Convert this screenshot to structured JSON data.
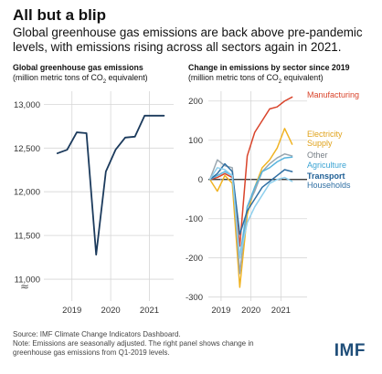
{
  "header": {
    "title": "All but a blip",
    "subtitle": "Global greenhouse gas emissions are back above pre-pandemic levels, with emissions rising across all sectors again in 2021."
  },
  "left_panel": {
    "title": "Global greenhouse gas  emissions",
    "unit_before": "(million metric tons of CO",
    "unit_sub": "2",
    "unit_after": " equivalent)"
  },
  "right_panel": {
    "title": "Change in emissions by sector since 2019",
    "unit_before": "(million metric tons of CO",
    "unit_sub": "2",
    "unit_after": " equivalent)"
  },
  "footer": {
    "source": "Source: IMF Climate Change Indicators Dashboard.",
    "note_line1": "Note: Emissions are seasonally adjusted. The right panel shows change in",
    "note_line2": "greenhouse gas emissions from Q1-2019 levels.",
    "logo": "IMF"
  },
  "chart_data": [
    {
      "type": "line",
      "title": "Global greenhouse gas  emissions",
      "ylabel": "(million metric tons of CO2 equivalent)",
      "ylim": [
        10750,
        13150
      ],
      "yticks": [
        11000,
        11500,
        12000,
        12500,
        13000
      ],
      "ytick_labels": [
        "11,000",
        "11,500",
        "12,000",
        "12,500",
        "13,000"
      ],
      "axis_break": true,
      "x": [
        2019.0,
        2019.25,
        2019.5,
        2019.75,
        2020.0,
        2020.25,
        2020.5,
        2020.75,
        2021.0,
        2021.25,
        2021.5,
        2021.75
      ],
      "xticks": [
        2019,
        2020,
        2021
      ],
      "xtick_labels": [
        "2019",
        "2020",
        "2021"
      ],
      "xlim": [
        2018.65,
        2022.0
      ],
      "grid": true,
      "color": "#1b3a5c",
      "values": [
        12440,
        12480,
        12680,
        12670,
        11280,
        12230,
        12480,
        12620,
        12630,
        12870,
        12870,
        12870
      ]
    },
    {
      "type": "line",
      "title": "Change in emissions by sector since 2019",
      "ylabel": "(million metric tons of CO2 equivalent)",
      "ylim": [
        -310,
        225
      ],
      "yticks": [
        -300,
        -200,
        -100,
        0,
        100,
        200
      ],
      "ytick_labels": [
        "-300",
        "-200",
        "-100",
        "0",
        "100",
        "200"
      ],
      "x": [
        2019.0,
        2019.25,
        2019.5,
        2019.75,
        2020.0,
        2020.25,
        2020.5,
        2020.75,
        2021.0,
        2021.25,
        2021.5,
        2021.75
      ],
      "xticks": [
        2019,
        2020,
        2021
      ],
      "xtick_labels": [
        "2019",
        "2020",
        "2021"
      ],
      "xlim": [
        2018.95,
        2022.25
      ],
      "grid": true,
      "legend": "inline-right",
      "series": [
        {
          "name": "Manufacturing",
          "color": "#d9442b",
          "values": [
            0,
            5,
            15,
            5,
            -170,
            60,
            120,
            150,
            180,
            185,
            200,
            210
          ]
        },
        {
          "name": "Electricity Supply",
          "color": "#f0b323",
          "values": [
            0,
            -30,
            10,
            -10,
            -275,
            -90,
            -20,
            30,
            50,
            80,
            130,
            90
          ]
        },
        {
          "name": "Other",
          "color": "#9aa7b0",
          "values": [
            0,
            50,
            35,
            30,
            -240,
            -70,
            -30,
            20,
            40,
            55,
            65,
            60
          ]
        },
        {
          "name": "Agriculture",
          "color": "#56b3dd",
          "values": [
            0,
            10,
            20,
            10,
            -200,
            -70,
            -20,
            20,
            30,
            45,
            55,
            57
          ]
        },
        {
          "name": "Transport",
          "color": "#2f6fa3",
          "values": [
            0,
            15,
            40,
            20,
            -140,
            -80,
            -50,
            -20,
            -5,
            10,
            25,
            20
          ]
        },
        {
          "name": "Households",
          "color": "#8fd0ee",
          "values": [
            0,
            30,
            25,
            10,
            -200,
            -110,
            -70,
            -40,
            -10,
            0,
            5,
            -5
          ]
        }
      ]
    }
  ]
}
